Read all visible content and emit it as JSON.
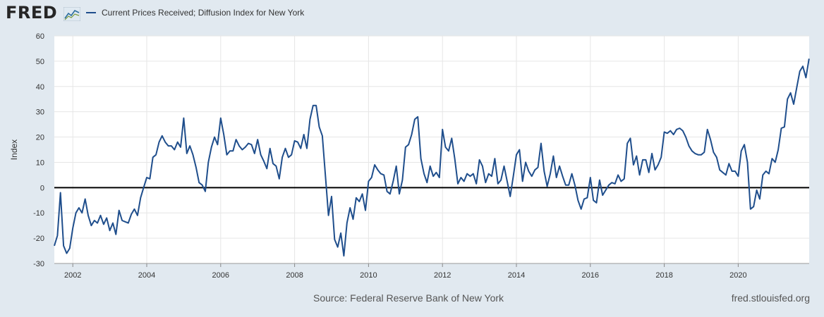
{
  "header": {
    "logo_text": "FRED",
    "legend_label": "Current Prices Received; Diffusion Index for New York"
  },
  "footer": {
    "source": "Source: Federal Reserve Bank of New York",
    "url": "fred.stlouisfed.org"
  },
  "colors": {
    "series": "#1f4e8c",
    "background": "#e1e9f0",
    "plot": "#ffffff",
    "grid": "#e6e6e6",
    "zero": "#000000"
  },
  "chart_data": {
    "type": "line",
    "title": "Current Prices Received; Diffusion Index for New York",
    "xlabel": "",
    "ylabel": "Index",
    "xlim": [
      2001.5,
      2021.92
    ],
    "ylim": [
      -30,
      60
    ],
    "xticks": [
      2002,
      2004,
      2006,
      2008,
      2010,
      2012,
      2014,
      2016,
      2018,
      2020
    ],
    "yticks": [
      -30,
      -20,
      -10,
      0,
      10,
      20,
      30,
      40,
      50,
      60
    ],
    "grid": true,
    "legend": "top-left",
    "series": [
      {
        "name": "Current Prices Received; Diffusion Index for New York",
        "start": 2001.5,
        "step": 0.08333,
        "values": [
          -23,
          -19,
          -2,
          -23,
          -26,
          -24,
          -16,
          -10,
          -8,
          -10,
          -4.5,
          -11,
          -15,
          -13,
          -14,
          -11,
          -14.5,
          -12,
          -17,
          -14,
          -18.5,
          -9,
          -13,
          -13.5,
          -14,
          -10.5,
          -8.5,
          -11,
          -4,
          0,
          4,
          3.5,
          12,
          13,
          18,
          20.5,
          18,
          16.5,
          16.5,
          15,
          18,
          16,
          27.5,
          13.5,
          16.5,
          13,
          8,
          2,
          1,
          -1.5,
          10,
          16,
          20,
          17,
          27.5,
          21,
          13,
          14.5,
          14.5,
          19,
          16.5,
          15,
          16,
          17.5,
          17,
          13.5,
          19,
          13,
          10.5,
          7.5,
          15.5,
          9.5,
          8.5,
          3.5,
          12,
          15.5,
          12,
          13,
          18.5,
          18,
          15.5,
          21,
          15.5,
          27,
          32.5,
          32.5,
          24,
          20.5,
          5,
          -11,
          -3.5,
          -20.5,
          -23.5,
          -18,
          -27,
          -14,
          -8,
          -12.5,
          -4,
          -5.5,
          -2.5,
          -9,
          2.5,
          4,
          9,
          7,
          5.5,
          5,
          -1.5,
          -2.5,
          2.5,
          8.5,
          -2.5,
          3,
          16,
          17,
          21,
          27,
          28,
          11.5,
          5.5,
          2,
          8.5,
          4.5,
          6,
          4,
          23,
          16,
          14.5,
          19.5,
          11.5,
          1.5,
          4,
          2.5,
          5.5,
          4.5,
          5.5,
          1.5,
          11,
          8.5,
          2,
          5.5,
          4.5,
          11.5,
          1.5,
          3,
          8.5,
          2.5,
          -3.5,
          4.5,
          13,
          15,
          2.5,
          10,
          6.5,
          4.5,
          7,
          8,
          17.5,
          6.5,
          0.5,
          5.5,
          12.5,
          4,
          8.5,
          4.5,
          1,
          1,
          5.5,
          1,
          -5,
          -8.5,
          -4.5,
          -4,
          4,
          -5,
          -6,
          3,
          -3,
          -1,
          1,
          2,
          1.5,
          5,
          2.5,
          3.5,
          17.5,
          19.5,
          9,
          12.5,
          5,
          11,
          11,
          6,
          13.5,
          7,
          9,
          12,
          22,
          21.5,
          22.5,
          21,
          23,
          23.5,
          22.5,
          20,
          16.5,
          14.5,
          13.5,
          13,
          13,
          14,
          23,
          19,
          14,
          12,
          7,
          6,
          5,
          9.5,
          6.5,
          6.5,
          4.5,
          14.5,
          17,
          10,
          -8.5,
          -7.5,
          -1,
          -4.5,
          5,
          6.5,
          5.5,
          11.5,
          10,
          15,
          23.5,
          24,
          35,
          37.5,
          33,
          39.5,
          46,
          48,
          43.5,
          51
        ]
      }
    ]
  }
}
